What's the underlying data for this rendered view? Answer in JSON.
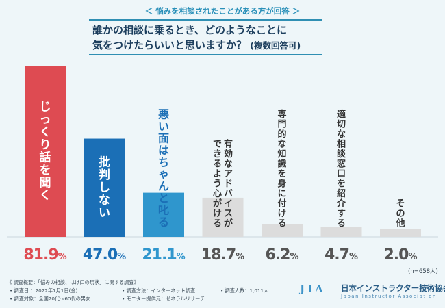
{
  "header": {
    "subtitle": "＜ 悩みを相談されたことがある方が回答 ＞",
    "title_line1": "誰かの相談に乗るとき、どのようなことに",
    "title_line2": "気をつけたらいいと思いますか？",
    "title_note": "(複数回答可)"
  },
  "chart_data": {
    "type": "bar",
    "categories": [
      "じっくり話を聞く",
      "批判しない",
      "悪い面はちゃんと叱る",
      "有効なアドバイスが|できるよう心がける",
      "専門的な知識を身に付ける",
      "適切な相談窓口を紹介する",
      "その他"
    ],
    "values": [
      81.9,
      47.0,
      21.1,
      18.7,
      6.2,
      4.7,
      2.0
    ],
    "value_labels": [
      "81.9%",
      "47.0%",
      "21.1%",
      "18.7%",
      "6.2%",
      "4.7%",
      "2.0%"
    ],
    "unit": "%",
    "ylim": [
      0,
      81.9
    ],
    "colors": [
      "#de4b52",
      "#1b6fb6",
      "#2f96cd",
      "#dcdcdc",
      "#dcdcdc",
      "#dcdcdc",
      "#dcdcdc"
    ],
    "label_colors": [
      "#ffffff",
      "#ffffff",
      "#1b6fb6",
      "#333333",
      "#333333",
      "#333333",
      "#333333"
    ],
    "value_colors": [
      "#de4b52",
      "#1b6fb6",
      "#2f96cd",
      "#555555",
      "#555555",
      "#555555",
      "#555555"
    ]
  },
  "sample_size": "(n=658人)",
  "survey": {
    "heading": "《 調査概要：「悩みの相談、はけ口の現状」に関する調査》",
    "period": "• 調査日 ：2022年7月1日(金)",
    "method": "• 調査方法：インターネット調査",
    "count": "• 調査人数：1,011人",
    "target": "• 調査対象：全国20代〜60代の男女",
    "provider": "• モニター提供元：ゼネラルリサーチ"
  },
  "logo": {
    "mark": "JIA",
    "name": "日本インストラクター技術協会",
    "english": "Japan Instructor Association"
  }
}
